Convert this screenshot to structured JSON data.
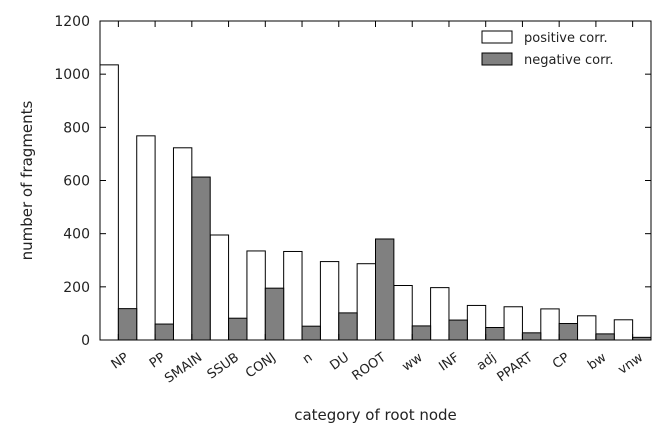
{
  "chart_data": {
    "type": "bar",
    "xlabel": "category of root node",
    "ylabel": "number of fragments",
    "ylim": [
      0,
      1200
    ],
    "yticks": [
      0,
      200,
      400,
      600,
      800,
      1000,
      1200
    ],
    "grid": false,
    "legend_position": "top-right",
    "categories": [
      "NP",
      "PP",
      "SMAIN",
      "SSUB",
      "CONJ",
      "n",
      "DU",
      "ROOT",
      "ww",
      "INF",
      "adj",
      "PPART",
      "CP",
      "bw",
      "vnw"
    ],
    "series": [
      {
        "name": "positive corr.",
        "color": "#ffffff",
        "values": [
          1035,
          768,
          723,
          395,
          335,
          333,
          295,
          287,
          205,
          197,
          130,
          125,
          117,
          91,
          76
        ]
      },
      {
        "name": "negative corr.",
        "color": "#808080",
        "values": [
          118,
          60,
          613,
          82,
          195,
          52,
          102,
          380,
          53,
          75,
          47,
          27,
          62,
          23,
          10
        ]
      }
    ]
  }
}
